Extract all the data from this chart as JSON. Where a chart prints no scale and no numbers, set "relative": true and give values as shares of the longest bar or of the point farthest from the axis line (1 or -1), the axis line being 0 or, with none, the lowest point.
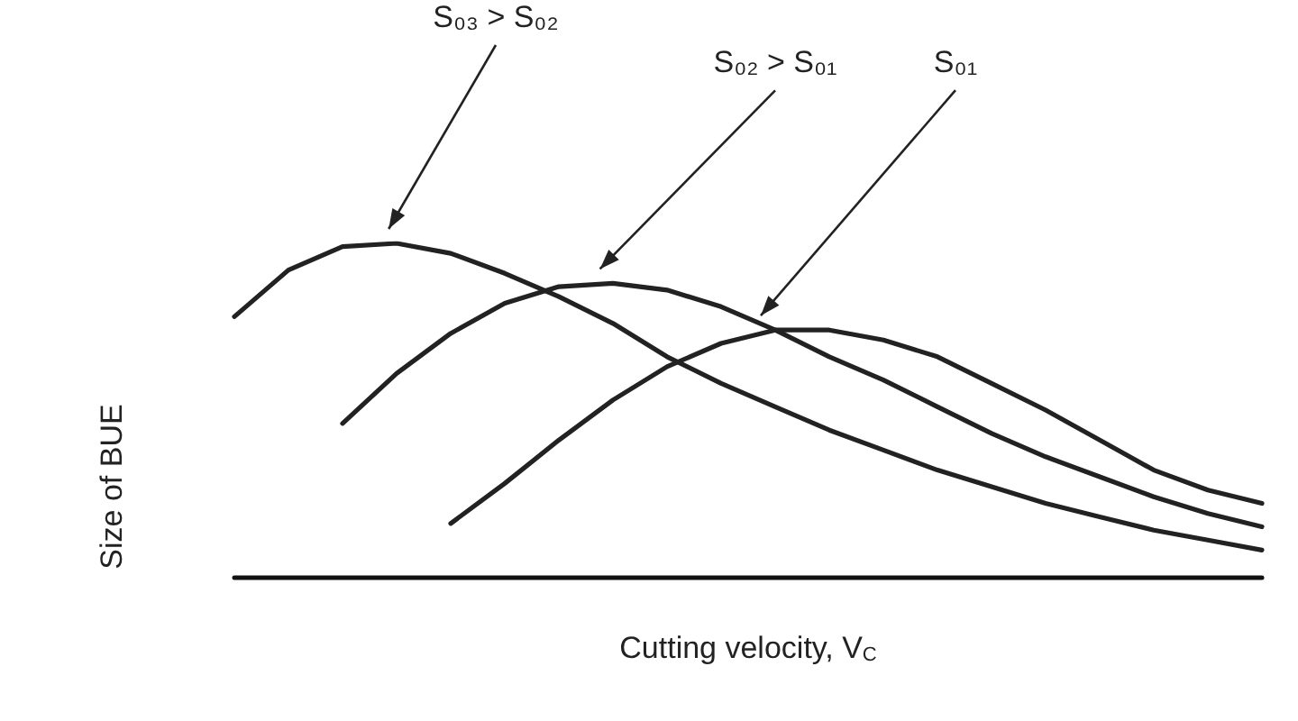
{
  "chart_data": {
    "type": "line",
    "relative": true,
    "xlabel": "Cutting velocity, V$_{C}$",
    "ylabel": "Size of BUE",
    "categories": [
      null,
      null,
      null,
      null,
      null,
      null,
      null,
      null,
      null,
      null,
      null,
      null,
      null,
      null,
      null,
      null,
      null,
      null,
      null,
      null
    ],
    "series": [
      {
        "color": "#222222",
        "values": [
          0.78,
          0.92,
          0.99,
          1.0,
          0.97,
          0.91,
          0.84,
          0.76,
          0.66,
          0.58,
          0.51,
          0.44,
          0.38,
          0.32,
          0.27,
          0.22,
          0.18,
          0.14,
          0.11,
          0.08
        ]
      },
      {
        "color": "#222222",
        "values": [
          null,
          null,
          0.46,
          0.61,
          0.73,
          0.82,
          0.87,
          0.88,
          0.86,
          0.81,
          0.74,
          0.66,
          0.59,
          0.51,
          0.43,
          0.36,
          0.3,
          0.24,
          0.19,
          0.15
        ]
      },
      {
        "color": "#222222",
        "values": [
          null,
          null,
          null,
          null,
          0.16,
          0.28,
          0.41,
          0.53,
          0.63,
          0.7,
          0.74,
          0.74,
          0.71,
          0.66,
          0.58,
          0.5,
          0.41,
          0.32,
          0.26,
          0.22
        ]
      }
    ],
    "annotations": [
      "S₀₃ > S₀₂",
      "S₀₂ > S₀₁",
      "S₀₁"
    ],
    "marker": "none",
    "line_style": "solid",
    "grid": false
  }
}
